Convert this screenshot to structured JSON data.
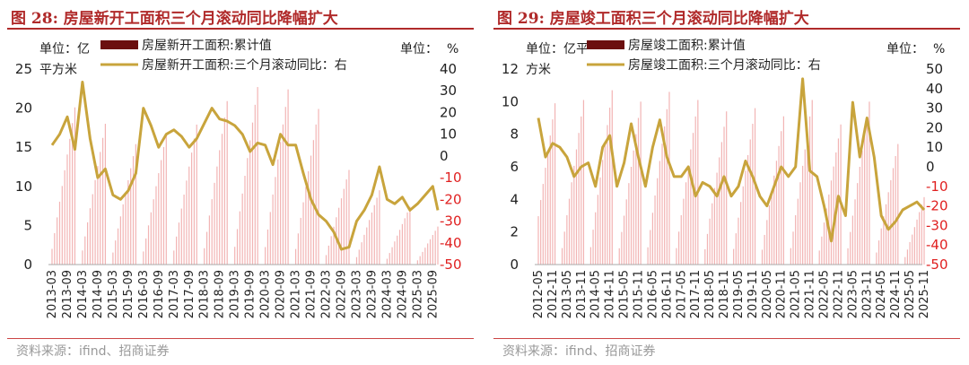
{
  "charts": [
    {
      "title": "图 28:  房屋新开工面积三个月滚动同比降幅扩大",
      "source": "资料来源：ifind、招商证券",
      "left_unit_1": "单位：亿",
      "left_unit_2": "平方米",
      "right_unit_1": "单位：",
      "right_unit_2": "%"
    },
    {
      "title": "图 29:  房屋竣工面积三个月滚动同比降幅扩大",
      "source": "资料来源：ifind、招商证券",
      "left_unit_1": "单位：亿平",
      "left_unit_2": "方米",
      "right_unit_1": "单位：",
      "right_unit_2": "%"
    }
  ],
  "chart_data": [
    {
      "type": "bar+line",
      "bar_color": "#6b0f0f",
      "line_color": "#c8a43c",
      "series": [
        {
          "name": "房屋新开工面积:累计值",
          "axis": "left",
          "type": "bar",
          "start": "2013-03",
          "end": "2025-11",
          "annual_peaks": [
            20.1,
            18.0,
            15.4,
            16.7,
            17.9,
            20.9,
            22.7,
            22.4,
            19.9,
            12.1,
            9.5,
            7.4,
            5.4
          ],
          "note": "monthly cumulative, Mar–Dec each year, resets yearly"
        },
        {
          "name": "房屋新开工面积:三个月滚动同比：右",
          "axis": "right",
          "type": "line",
          "x": [
            "2013-03",
            "2013-06",
            "2013-09",
            "2013-12",
            "2014-03",
            "2014-06",
            "2014-09",
            "2014-12",
            "2015-03",
            "2015-06",
            "2015-09",
            "2015-12",
            "2016-03",
            "2016-06",
            "2016-09",
            "2016-12",
            "2017-03",
            "2017-06",
            "2017-09",
            "2017-12",
            "2018-03",
            "2018-06",
            "2018-09",
            "2018-12",
            "2019-03",
            "2019-06",
            "2019-09",
            "2019-12",
            "2020-03",
            "2020-06",
            "2020-09",
            "2020-12",
            "2021-03",
            "2021-06",
            "2021-09",
            "2021-12",
            "2022-03",
            "2022-06",
            "2022-09",
            "2022-12",
            "2023-03",
            "2023-06",
            "2023-09",
            "2023-12",
            "2024-03",
            "2024-06",
            "2024-09",
            "2024-12",
            "2025-03",
            "2025-06",
            "2025-09",
            "2025-11"
          ],
          "y": [
            5,
            10,
            18,
            3,
            34,
            8,
            -10,
            -6,
            -18,
            -20,
            -16,
            -8,
            22,
            14,
            4,
            10,
            12,
            9,
            4,
            8,
            15,
            22,
            17,
            16,
            14,
            10,
            2,
            6,
            5,
            -4,
            10,
            5,
            5,
            -8,
            -20,
            -27,
            -30,
            -35,
            -43,
            -42,
            -30,
            -25,
            -18,
            -5,
            -20,
            -22,
            -19,
            -25,
            -22,
            -18,
            -14,
            -25
          ]
        }
      ],
      "x_ticks": [
        "2013-03",
        "2013-09",
        "2014-03",
        "2014-09",
        "2015-03",
        "2015-09",
        "2016-03",
        "2016-09",
        "2017-03",
        "2017-09",
        "2018-03",
        "2018-09",
        "2019-03",
        "2019-09",
        "2020-03",
        "2020-09",
        "2021-03",
        "2021-09",
        "2022-03",
        "2022-09",
        "2023-03",
        "2023-09",
        "2024-03",
        "2024-09",
        "2025-03",
        "2025-09"
      ],
      "left_axis": {
        "ylim": [
          0,
          25
        ],
        "ticks": [
          0,
          5,
          10,
          15,
          20,
          25
        ]
      },
      "right_axis": {
        "ylim": [
          -50,
          40
        ],
        "ticks": [
          -50,
          -40,
          -30,
          -20,
          -10,
          0,
          10,
          20,
          30,
          40
        ]
      }
    },
    {
      "type": "bar+line",
      "bar_color": "#6b0f0f",
      "line_color": "#c8a43c",
      "series": [
        {
          "name": "房屋竣工面积:累计值",
          "axis": "left",
          "type": "bar",
          "start": "2012-05",
          "end": "2025-11",
          "annual_peaks": [
            9.9,
            10.1,
            10.7,
            10.0,
            10.6,
            10.1,
            9.4,
            9.6,
            9.1,
            10.1,
            8.6,
            10.0,
            7.4,
            4.6
          ],
          "note": "monthly cumulative, resets yearly; December values highest"
        },
        {
          "name": "房屋竣工面积:三个月滚动同比：右",
          "axis": "right",
          "type": "line",
          "x": [
            "2012-05",
            "2012-08",
            "2012-11",
            "2013-02",
            "2013-05",
            "2013-08",
            "2013-11",
            "2014-02",
            "2014-05",
            "2014-08",
            "2014-11",
            "2015-02",
            "2015-05",
            "2015-08",
            "2015-11",
            "2016-02",
            "2016-05",
            "2016-08",
            "2016-11",
            "2017-02",
            "2017-05",
            "2017-08",
            "2017-11",
            "2018-02",
            "2018-05",
            "2018-08",
            "2018-11",
            "2019-02",
            "2019-05",
            "2019-08",
            "2019-11",
            "2020-02",
            "2020-05",
            "2020-08",
            "2020-11",
            "2021-02",
            "2021-05",
            "2021-08",
            "2021-11",
            "2022-02",
            "2022-05",
            "2022-08",
            "2022-11",
            "2023-02",
            "2023-05",
            "2023-08",
            "2023-11",
            "2024-02",
            "2024-05",
            "2024-08",
            "2024-11",
            "2025-02",
            "2025-05",
            "2025-08",
            "2025-11"
          ],
          "y": [
            25,
            5,
            12,
            10,
            5,
            -5,
            0,
            2,
            -10,
            10,
            16,
            -10,
            2,
            22,
            5,
            -10,
            10,
            24,
            5,
            -5,
            -5,
            0,
            -15,
            -8,
            -10,
            -15,
            -5,
            -15,
            -10,
            3,
            -5,
            -15,
            -20,
            -10,
            0,
            -5,
            0,
            45,
            -2,
            -5,
            -20,
            -38,
            -15,
            -25,
            33,
            5,
            25,
            5,
            -25,
            -32,
            -28,
            -22,
            -20,
            -18,
            -22
          ]
        }
      ],
      "x_ticks": [
        "2012-05",
        "2012-11",
        "2013-05",
        "2013-11",
        "2014-05",
        "2014-11",
        "2015-05",
        "2015-11",
        "2016-05",
        "2016-11",
        "2017-05",
        "2017-11",
        "2018-05",
        "2018-11",
        "2019-05",
        "2019-11",
        "2020-05",
        "2020-11",
        "2021-05",
        "2021-11",
        "2022-05",
        "2022-11",
        "2023-05",
        "2023-11",
        "2024-05",
        "2024-11",
        "2025-05",
        "2025-11"
      ],
      "left_axis": {
        "ylim": [
          0,
          12
        ],
        "ticks": [
          0,
          2,
          4,
          6,
          8,
          10,
          12
        ]
      },
      "right_axis": {
        "ylim": [
          -50,
          50
        ],
        "ticks": [
          -50,
          -40,
          -30,
          -20,
          -10,
          0,
          10,
          20,
          30,
          40,
          50
        ]
      }
    }
  ]
}
